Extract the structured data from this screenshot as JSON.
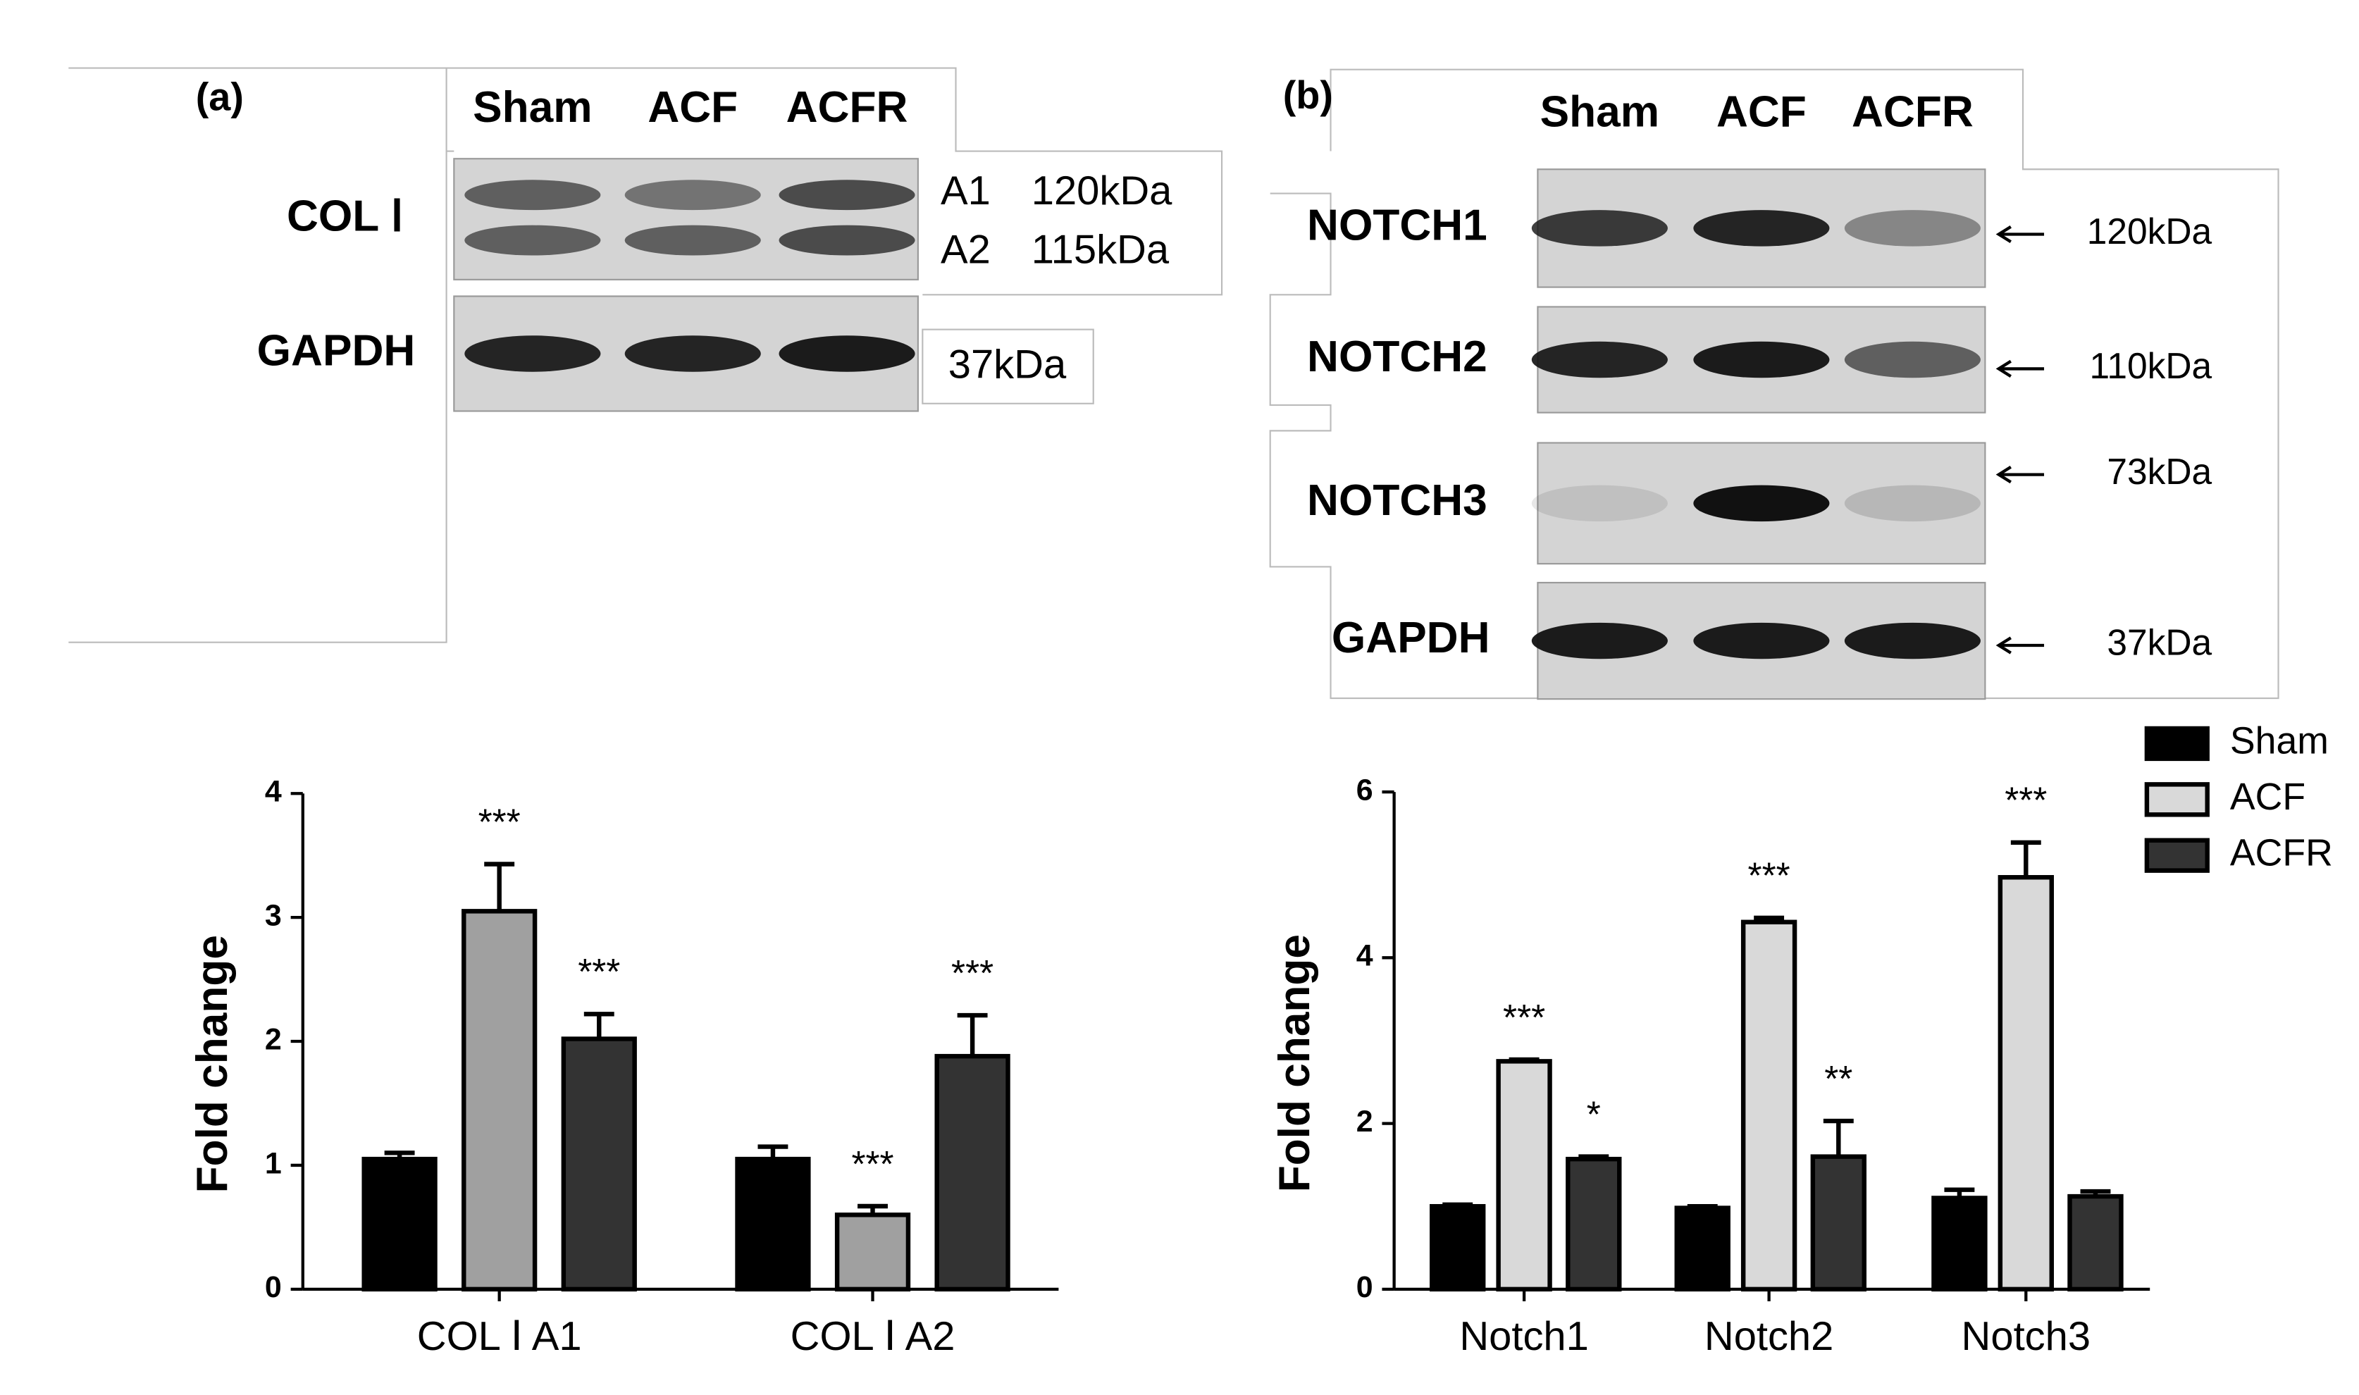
{
  "blots": [
    {
      "panel": "(a)",
      "lanes": [
        "Sham",
        "ACF",
        "ACFR"
      ],
      "rows": [
        {
          "label": "COL Ⅰ",
          "bands": [
            "A1",
            "A2"
          ],
          "sizes": [
            "120kDa",
            "115kDa"
          ]
        },
        {
          "label": "GAPDH",
          "sizes": [
            "37kDa"
          ]
        }
      ]
    },
    {
      "panel": "(b)",
      "lanes": [
        "Sham",
        "ACF",
        "ACFR"
      ],
      "rows": [
        {
          "label": "NOTCH1",
          "sizes": [
            "120kDa"
          ]
        },
        {
          "label": "NOTCH2",
          "sizes": [
            "110kDa"
          ]
        },
        {
          "label": "NOTCH3",
          "sizes": [
            "73kDa"
          ]
        },
        {
          "label": "GAPDH",
          "sizes": [
            "37kDa"
          ]
        }
      ]
    }
  ],
  "chart_data": [
    {
      "type": "bar",
      "y_label": "Fold change",
      "categories": [
        "COL Ⅰ A1",
        "COL Ⅰ A2"
      ],
      "series": [
        {
          "name": "Sham",
          "color": "#000000",
          "values": [
            1.05,
            1.05
          ],
          "errors": [
            0.05,
            0.1
          ]
        },
        {
          "name": "ACF",
          "color": "#a0a0a0",
          "values": [
            3.05,
            0.6
          ],
          "errors": [
            0.38,
            0.07
          ],
          "annotations": [
            "***",
            "***"
          ]
        },
        {
          "name": "ACFR",
          "color": "#333333",
          "values": [
            2.02,
            1.88
          ],
          "errors": [
            0.2,
            0.33
          ],
          "annotations": [
            "***",
            "***"
          ]
        }
      ],
      "ylim": [
        0,
        4
      ],
      "yticks": [
        0,
        1,
        2,
        3,
        4
      ],
      "legend": false
    },
    {
      "type": "bar",
      "y_label": "Fold change",
      "categories": [
        "Notch1",
        "Notch2",
        "Notch3"
      ],
      "series": [
        {
          "name": "Sham",
          "color": "#000000",
          "values": [
            1.0,
            0.98,
            1.1
          ],
          "errors": [
            0.02,
            0.02,
            0.1
          ]
        },
        {
          "name": "ACF",
          "color": "#d9d9d9",
          "values": [
            2.75,
            4.43,
            4.97
          ],
          "errors": [
            0.02,
            0.05,
            0.42
          ],
          "annotations": [
            "***",
            "***",
            "***"
          ]
        },
        {
          "name": "ACFR",
          "color": "#333333",
          "values": [
            1.57,
            1.6,
            1.12
          ],
          "errors": [
            0.03,
            0.43,
            0.06
          ],
          "annotations": [
            "*",
            "**",
            null
          ]
        }
      ],
      "ylim": [
        0,
        6
      ],
      "yticks": [
        0,
        2,
        4,
        6
      ],
      "legend": true
    }
  ]
}
